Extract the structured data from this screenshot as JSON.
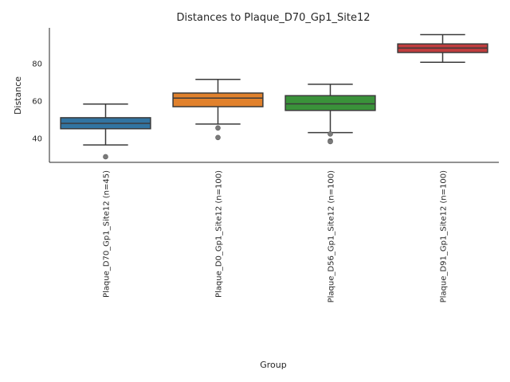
{
  "chart_data": {
    "type": "box",
    "title": "Distances to Plaque_D70_Gp1_Site12",
    "xlabel": "Group",
    "ylabel": "Distance",
    "ylim": [
      27,
      99
    ],
    "yticks": [
      40,
      60,
      80
    ],
    "grid": false,
    "categories": [
      "Plaque_D70_Gp1_Site12 (n=45)",
      "Plaque_D0_Gp1_Site12 (n=100)",
      "Plaque_D56_Gp1_Site12 (n=100)",
      "Plaque_D91_Gp1_Site12 (n=100)"
    ],
    "boxes": [
      {
        "category": "Plaque_D70_Gp1_Site12 (n=45)",
        "color": "#3274a1",
        "whislo": 36.3,
        "q1": 45.0,
        "median": 47.9,
        "q3": 50.9,
        "whishi": 58.2,
        "outliers": [
          30.0
        ]
      },
      {
        "category": "Plaque_D0_Gp1_Site12 (n=100)",
        "color": "#e1812c",
        "whislo": 47.5,
        "q1": 56.8,
        "median": 61.4,
        "q3": 64.1,
        "whishi": 71.4,
        "outliers": [
          45.4,
          40.3
        ]
      },
      {
        "category": "Plaque_D56_Gp1_Site12 (n=100)",
        "color": "#3a923a",
        "whislo": 42.9,
        "q1": 54.8,
        "median": 58.3,
        "q3": 62.7,
        "whishi": 68.8,
        "outliers": [
          42.2,
          38.5,
          38.1
        ]
      },
      {
        "category": "Plaque_D91_Gp1_Site12 (n=100)",
        "color": "#c03d3e",
        "whislo": 80.6,
        "q1": 85.8,
        "median": 88.2,
        "q3": 90.4,
        "whishi": 95.4,
        "outliers": []
      }
    ]
  }
}
